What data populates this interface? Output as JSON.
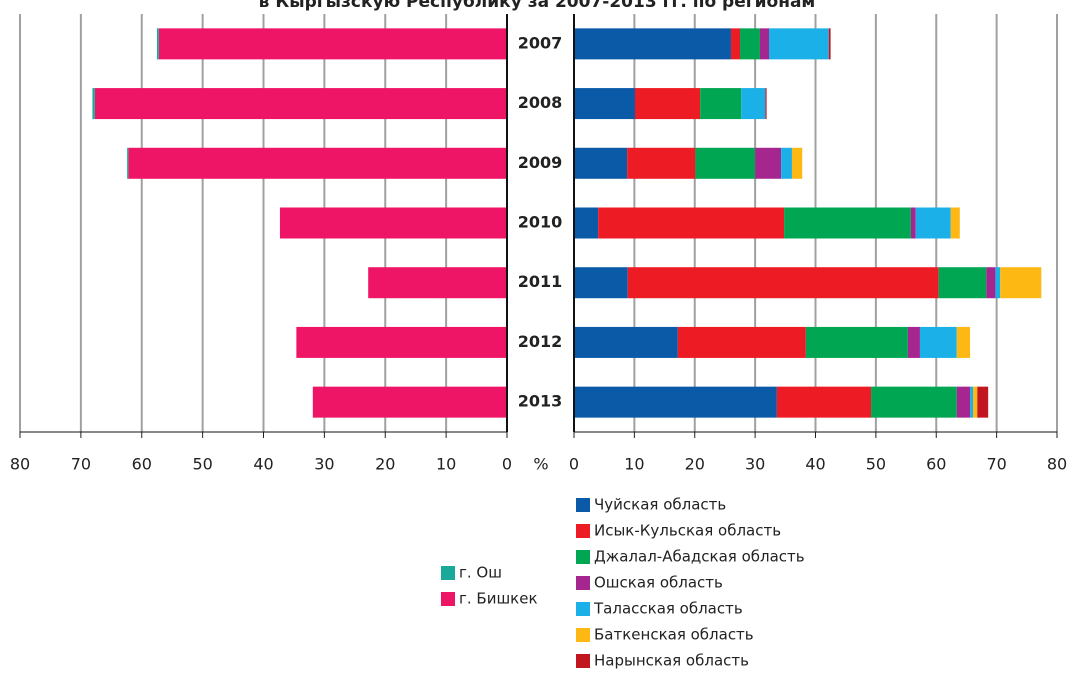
{
  "chart_data": {
    "type": "butterfly-bar",
    "title": "в Кыргызскую Республику за 2007-2013 гг. по регионам",
    "unit_label": "%",
    "categories": [
      "2007",
      "2008",
      "2009",
      "2010",
      "2011",
      "2012",
      "2013"
    ],
    "grid": true,
    "left": {
      "reversed": true,
      "xlim": [
        0,
        80
      ],
      "xticks": [
        0,
        10,
        20,
        30,
        40,
        50,
        60,
        70,
        80
      ],
      "series": [
        {
          "name": "г. Бишкек",
          "color": "#ee1566",
          "values": [
            57.2,
            67.7,
            62.2,
            37.3,
            22.8,
            34.6,
            31.9
          ]
        },
        {
          "name": "г. Ош",
          "color": "#1aa89b",
          "values": [
            0.3,
            0.4,
            0.2,
            0,
            0,
            0,
            0
          ]
        }
      ]
    },
    "right": {
      "reversed": false,
      "xlim": [
        0,
        80
      ],
      "xticks": [
        0,
        10,
        20,
        30,
        40,
        50,
        60,
        70,
        80
      ],
      "series": [
        {
          "name": "Чуйская область",
          "color": "#0b5aa8",
          "values": [
            26.0,
            10.1,
            8.8,
            4.0,
            8.9,
            17.2,
            33.6
          ]
        },
        {
          "name": "Исык-Кульская область",
          "color": "#ed1c24",
          "values": [
            1.5,
            10.8,
            11.3,
            30.8,
            51.5,
            21.2,
            15.6
          ]
        },
        {
          "name": "Джалал-Абадская область",
          "color": "#00a651",
          "values": [
            3.3,
            6.8,
            9.9,
            21.0,
            7.9,
            16.9,
            14.2
          ]
        },
        {
          "name": "Ошская область",
          "color": "#a6268f",
          "values": [
            1.5,
            0,
            4.3,
            0.8,
            1.5,
            2.0,
            2.2
          ]
        },
        {
          "name": "Таласская область",
          "color": "#1bb0e8",
          "values": [
            9.9,
            4.0,
            1.8,
            5.8,
            0.8,
            6.1,
            0.5
          ]
        },
        {
          "name": "Баткенская область",
          "color": "#fdb813",
          "values": [
            0,
            0,
            1.7,
            1.5,
            6.8,
            2.2,
            0.7
          ]
        },
        {
          "name": "Нарынская область",
          "color": "#c1161f",
          "values": [
            0.3,
            0.2,
            0,
            0,
            0,
            0,
            1.8
          ]
        }
      ]
    }
  }
}
